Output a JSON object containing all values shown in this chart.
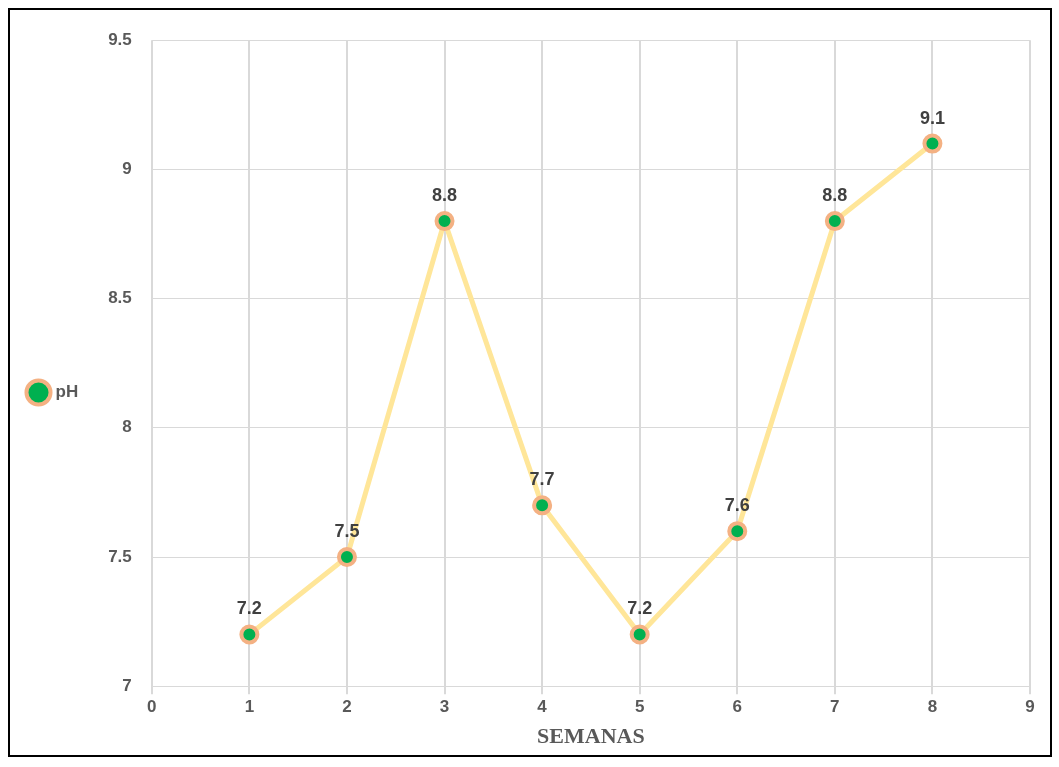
{
  "chart_data": {
    "type": "line",
    "xlabel": "SEMANAS",
    "x": [
      1,
      2,
      3,
      4,
      5,
      6,
      7,
      8
    ],
    "series": [
      {
        "name": "pH",
        "color": "#ffe699",
        "values": [
          7.2,
          7.5,
          8.8,
          7.7,
          7.2,
          7.6,
          8.8,
          9.1
        ]
      }
    ],
    "xlim": [
      0,
      9
    ],
    "xticks": [
      0,
      1,
      2,
      3,
      4,
      5,
      6,
      7,
      8,
      9
    ],
    "ylim": [
      7,
      9.5
    ],
    "yticks": [
      7,
      7.5,
      8,
      8.5,
      9,
      9.5
    ],
    "grid": true,
    "legend": "left",
    "marker": "circle",
    "data_labels": true
  }
}
